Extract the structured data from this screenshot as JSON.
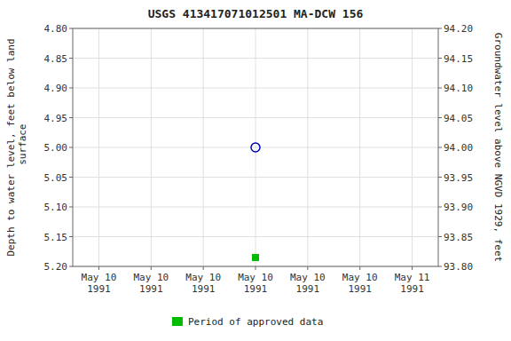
{
  "chart_data": {
    "type": "scatter",
    "title": "USGS 413417071012501 MA-DCW  156",
    "y_label": "Depth to water level, feet below land\n surface",
    "y2_label": "Groundwater level above NGVD 1929, feet",
    "categories": [
      "May 10\n1991",
      "May 10\n1991",
      "May 10\n1991",
      "May 10\n1991",
      "May 10\n1991",
      "May 10\n1991",
      "May 11\n1991"
    ],
    "series": [
      {
        "color": "#0000bb",
        "marker": "circle-open",
        "values": [
          null,
          null,
          null,
          5.0,
          null,
          null,
          null
        ]
      },
      {
        "name": "Period of approved data",
        "color": "#00bb00",
        "marker": "square",
        "values": [
          null,
          null,
          null,
          5.185,
          null,
          null,
          null
        ]
      }
    ],
    "ylim": [
      5.2,
      4.8
    ],
    "yticks": [
      {
        "value": 4.8,
        "label": "4.80"
      },
      {
        "value": 4.85,
        "label": "4.85"
      },
      {
        "value": 4.9,
        "label": "4.90"
      },
      {
        "value": 4.95,
        "label": "4.95"
      },
      {
        "value": 5.0,
        "label": "5.00"
      },
      {
        "value": 5.05,
        "label": "5.05"
      },
      {
        "value": 5.1,
        "label": "5.10"
      },
      {
        "value": 5.15,
        "label": "5.15"
      },
      {
        "value": 5.2,
        "label": "5.20"
      }
    ],
    "y2lim": [
      93.8,
      94.2
    ],
    "y2ticks": [
      {
        "value": 93.8,
        "label": "93.80"
      },
      {
        "value": 93.85,
        "label": "93.85"
      },
      {
        "value": 93.9,
        "label": "93.90"
      },
      {
        "value": 93.95,
        "label": "93.95"
      },
      {
        "value": 94.0,
        "label": "94.00"
      },
      {
        "value": 94.05,
        "label": "94.05"
      },
      {
        "value": 94.1,
        "label": "94.10"
      },
      {
        "value": 94.15,
        "label": "94.15"
      },
      {
        "value": 94.2,
        "label": "94.20"
      }
    ],
    "grid": true,
    "legend": "bottom"
  }
}
